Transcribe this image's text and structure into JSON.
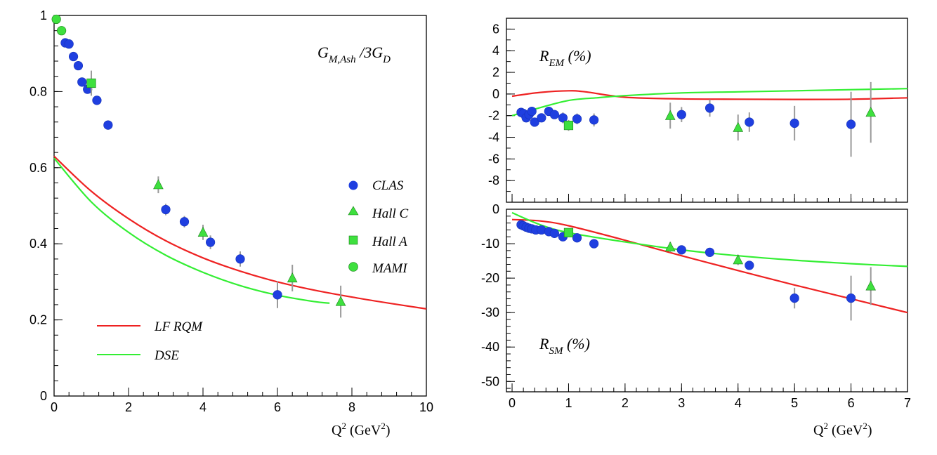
{
  "colors": {
    "clas": "#1f3fe0",
    "jlab_green": "#3ee03e",
    "lfrqm": "#ee2222",
    "dse": "#33ee33",
    "errbar": "#9a9a9a"
  },
  "chart_data": [
    {
      "id": "gm",
      "type": "scatter",
      "title_main": "G",
      "title_sub": "M,Ash",
      "title_mid": " /3G",
      "title_sub2": "D",
      "xlabel_main": "Q",
      "xlabel_sup": "2",
      "xlabel_mid": " (GeV",
      "xlabel_sup2": "2",
      "xlabel_end": ")",
      "xlim": [
        0,
        10
      ],
      "ylim": [
        0,
        1.0
      ],
      "xticks": [
        "0",
        "2",
        "4",
        "6",
        "8",
        "10"
      ],
      "yticks": [
        "0",
        "0.2",
        "0.4",
        "0.6",
        "0.8",
        "1"
      ],
      "legend": [
        {
          "label": "CLAS",
          "marker": "circle",
          "color": "#1f3fe0"
        },
        {
          "label": "Hall C",
          "marker": "triangle",
          "color": "#3ee03e"
        },
        {
          "label": "Hall A",
          "marker": "square",
          "color": "#3ee03e"
        },
        {
          "label": "MAMI",
          "marker": "circle",
          "color": "#3ee03e"
        },
        {
          "label": "LF RQM",
          "marker": "line",
          "color": "#ee2222"
        },
        {
          "label": "DSE",
          "marker": "line",
          "color": "#33ee33"
        }
      ],
      "series": [
        {
          "name": "CLAS",
          "marker": "circle",
          "color": "#1f3fe0",
          "points": [
            [
              0.3,
              0.928,
              0
            ],
            [
              0.4,
              0.925,
              0
            ],
            [
              0.52,
              0.892,
              0.005
            ],
            [
              0.65,
              0.868,
              0.005
            ],
            [
              0.75,
              0.825,
              0.006
            ],
            [
              0.9,
              0.806,
              0.006
            ],
            [
              1.15,
              0.777,
              0.007
            ],
            [
              1.45,
              0.712,
              0.012
            ],
            [
              3.0,
              0.49,
              0.015
            ],
            [
              3.5,
              0.458,
              0.015
            ],
            [
              4.2,
              0.404,
              0.018
            ],
            [
              5.0,
              0.36,
              0.02
            ],
            [
              6.0,
              0.266,
              0.035
            ]
          ]
        },
        {
          "name": "Hall C",
          "marker": "triangle",
          "color": "#3ee03e",
          "points": [
            [
              2.8,
              0.555,
              0.022
            ],
            [
              4.0,
              0.43,
              0.02
            ],
            [
              6.4,
              0.31,
              0.035
            ],
            [
              7.7,
              0.248,
              0.042
            ]
          ]
        },
        {
          "name": "Hall A",
          "marker": "square",
          "color": "#3ee03e",
          "points": [
            [
              1.0,
              0.822,
              0.033
            ]
          ]
        },
        {
          "name": "MAMI",
          "marker": "circle",
          "color": "#3ee03e",
          "points": [
            [
              0.06,
              0.99,
              0
            ],
            [
              0.2,
              0.96,
              0
            ]
          ]
        },
        {
          "name": "LF RQM",
          "type": "line",
          "color": "#ee2222",
          "x": [
            0,
            1,
            2,
            3,
            4,
            5,
            6,
            7,
            8,
            9,
            10
          ],
          "y": [
            0.63,
            0.538,
            0.466,
            0.408,
            0.363,
            0.328,
            0.3,
            0.278,
            0.26,
            0.244,
            0.229
          ]
        },
        {
          "name": "DSE",
          "type": "line",
          "color": "#33ee33",
          "x": [
            0,
            1,
            2,
            3,
            4,
            5,
            6,
            7,
            7.4
          ],
          "y": [
            0.625,
            0.51,
            0.43,
            0.37,
            0.325,
            0.29,
            0.265,
            0.248,
            0.244
          ]
        }
      ]
    },
    {
      "id": "rem",
      "type": "scatter",
      "title_main": "R",
      "title_sub": "EM",
      "title_end": " (%)",
      "xlim": [
        -0.1,
        7
      ],
      "ylim": [
        -10,
        7
      ],
      "yticks": [
        "6",
        "4",
        "2",
        "0",
        "-2",
        "-4",
        "-6",
        "-8"
      ],
      "yticks_values": [
        6,
        4,
        2,
        0,
        -2,
        -4,
        -6,
        -8
      ],
      "series": [
        {
          "name": "CLAS",
          "marker": "circle",
          "color": "#1f3fe0",
          "points": [
            [
              0.16,
              -1.7,
              0.4
            ],
            [
              0.2,
              -1.8,
              0.4
            ],
            [
              0.25,
              -2.2,
              0.4
            ],
            [
              0.3,
              -1.9,
              0.4
            ],
            [
              0.35,
              -1.6,
              0.4
            ],
            [
              0.4,
              -2.6,
              0.4
            ],
            [
              0.52,
              -2.2,
              0.4
            ],
            [
              0.65,
              -1.6,
              0.4
            ],
            [
              0.75,
              -1.9,
              0.4
            ],
            [
              0.9,
              -2.2,
              0.5
            ],
            [
              1.15,
              -2.3,
              0.5
            ],
            [
              1.45,
              -2.4,
              0.6
            ],
            [
              3.0,
              -1.9,
              0.7
            ],
            [
              3.5,
              -1.3,
              0.8
            ],
            [
              4.2,
              -2.6,
              0.9
            ],
            [
              5.0,
              -2.7,
              1.6
            ],
            [
              6.0,
              -2.8,
              3.0
            ]
          ]
        },
        {
          "name": "Hall C",
          "marker": "triangle",
          "color": "#3ee03e",
          "points": [
            [
              2.8,
              -2.0,
              1.2
            ],
            [
              4.0,
              -3.1,
              1.2
            ],
            [
              6.35,
              -1.7,
              2.8
            ]
          ]
        },
        {
          "name": "Hall A",
          "marker": "square",
          "color": "#3ee03e",
          "points": [
            [
              1.0,
              -2.9,
              0.5
            ]
          ]
        },
        {
          "name": "LF RQM",
          "type": "line",
          "color": "#ee2222",
          "x": [
            0,
            0.5,
            1,
            1.3,
            2,
            3,
            4,
            5,
            6,
            7
          ],
          "y": [
            -0.2,
            0.15,
            0.3,
            0.2,
            -0.3,
            -0.45,
            -0.48,
            -0.5,
            -0.48,
            -0.35
          ]
        },
        {
          "name": "DSE",
          "type": "line",
          "color": "#33ee33",
          "x": [
            0,
            0.4,
            1,
            1.5,
            2,
            3,
            4,
            5,
            6,
            7
          ],
          "y": [
            -2.0,
            -1.4,
            -0.6,
            -0.35,
            -0.15,
            0.1,
            0.2,
            0.3,
            0.4,
            0.5
          ]
        }
      ]
    },
    {
      "id": "rsm",
      "type": "scatter",
      "title_main": "R",
      "title_sub": "SM",
      "title_end": " (%)",
      "xlabel_main": "Q",
      "xlabel_sup": "2",
      "xlabel_mid": " (GeV",
      "xlabel_sup2": "2",
      "xlabel_end": ")",
      "xlim": [
        -0.1,
        7
      ],
      "ylim": [
        -53,
        0
      ],
      "xticks": [
        "0",
        "1",
        "2",
        "3",
        "4",
        "5",
        "6",
        "7"
      ],
      "yticks": [
        "0",
        "-10",
        "-20",
        "-30",
        "-40",
        "-50"
      ],
      "yticks_values": [
        0,
        -10,
        -20,
        -30,
        -40,
        -50
      ],
      "series": [
        {
          "name": "CLAS",
          "marker": "circle",
          "color": "#1f3fe0",
          "points": [
            [
              0.16,
              -4.5,
              0.5
            ],
            [
              0.2,
              -4.8,
              0.5
            ],
            [
              0.25,
              -5.2,
              0.5
            ],
            [
              0.3,
              -5.5,
              0.5
            ],
            [
              0.35,
              -5.7,
              0.5
            ],
            [
              0.42,
              -6.0,
              0.5
            ],
            [
              0.52,
              -6.0,
              0.5
            ],
            [
              0.65,
              -6.5,
              0.6
            ],
            [
              0.75,
              -7.0,
              0.6
            ],
            [
              0.9,
              -8.0,
              0.7
            ],
            [
              1.15,
              -8.3,
              0.7
            ],
            [
              1.45,
              -10.0,
              0.8
            ],
            [
              3.0,
              -11.8,
              1.0
            ],
            [
              3.5,
              -12.5,
              1.0
            ],
            [
              4.2,
              -16.3,
              1.2
            ],
            [
              5.0,
              -25.8,
              3.0
            ],
            [
              6.0,
              -25.8,
              6.5
            ]
          ]
        },
        {
          "name": "Hall C",
          "marker": "triangle",
          "color": "#3ee03e",
          "points": [
            [
              2.8,
              -11.0,
              1.5
            ],
            [
              4.0,
              -14.7,
              1.5
            ],
            [
              6.35,
              -22.3,
              5.5
            ]
          ]
        },
        {
          "name": "Hall A",
          "marker": "square",
          "color": "#3ee03e",
          "points": [
            [
              1.0,
              -6.8,
              1.0
            ]
          ]
        },
        {
          "name": "LF RQM",
          "type": "line",
          "color": "#ee2222",
          "x": [
            0,
            0.5,
            1,
            2,
            3,
            4,
            5,
            6,
            7
          ],
          "y": [
            -3.0,
            -3.4,
            -4.8,
            -9.0,
            -13.5,
            -17.8,
            -22.0,
            -26.0,
            -30.0
          ]
        },
        {
          "name": "DSE",
          "type": "line",
          "color": "#33ee33",
          "x": [
            0,
            0.5,
            1,
            2,
            3,
            4,
            5,
            6,
            7
          ],
          "y": [
            -1.0,
            -4.5,
            -6.8,
            -9.5,
            -11.8,
            -13.5,
            -14.8,
            -15.8,
            -16.6
          ]
        }
      ]
    }
  ]
}
